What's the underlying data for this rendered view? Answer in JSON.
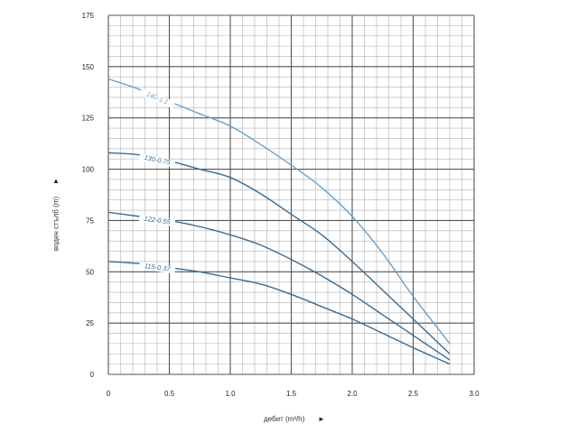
{
  "chart_data": {
    "type": "line",
    "xlabel": "дебит (m³/h)",
    "ylabel": "воден стълб (m)",
    "xlim": [
      0,
      3.0
    ],
    "ylim": [
      0,
      175
    ],
    "x_ticks": [
      "0",
      "0.5",
      "1.0",
      "1.5",
      "2.0",
      "2.5",
      "3.0"
    ],
    "y_ticks": [
      "0",
      "25",
      "50",
      "75",
      "100",
      "125",
      "150",
      "175"
    ],
    "grid": true,
    "series": [
      {
        "name": "140-1.1",
        "color": "#6aa1c8",
        "x": [
          0,
          0.25,
          0.5,
          0.75,
          1.0,
          1.25,
          1.5,
          1.75,
          2.0,
          2.25,
          2.5,
          2.8
        ],
        "y": [
          144,
          139,
          133,
          127,
          121,
          112,
          102,
          91,
          77,
          59,
          38,
          15
        ]
      },
      {
        "name": "130-0.75",
        "color": "#3a6c92",
        "x": [
          0,
          0.25,
          0.5,
          0.75,
          1.0,
          1.25,
          1.5,
          1.75,
          2.0,
          2.25,
          2.5,
          2.8
        ],
        "y": [
          108,
          107,
          104,
          100,
          96,
          88,
          78,
          68,
          55,
          41,
          27,
          10
        ]
      },
      {
        "name": "122-0.55",
        "color": "#3a6c92",
        "x": [
          0,
          0.25,
          0.5,
          0.75,
          1.0,
          1.25,
          1.5,
          1.75,
          2.0,
          2.25,
          2.5,
          2.8
        ],
        "y": [
          79,
          77,
          75,
          72,
          68,
          63,
          56,
          48,
          39,
          29,
          19,
          7
        ]
      },
      {
        "name": "115-0.37",
        "color": "#3a6c92",
        "x": [
          0,
          0.25,
          0.5,
          0.75,
          1.0,
          1.25,
          1.5,
          1.75,
          2.0,
          2.25,
          2.5,
          2.8
        ],
        "y": [
          55,
          54,
          52,
          50,
          47,
          44,
          39,
          33,
          27,
          20,
          13,
          5
        ]
      }
    ]
  }
}
